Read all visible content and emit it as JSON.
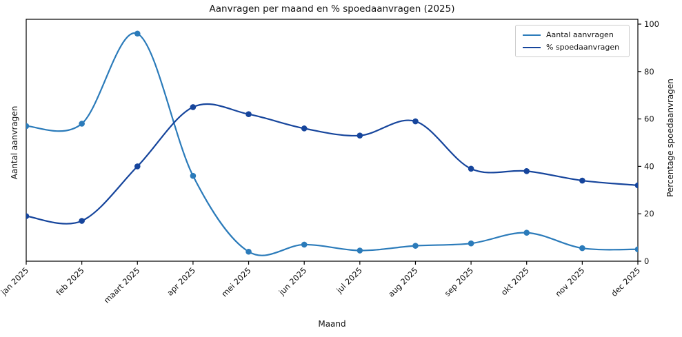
{
  "chart_data": {
    "type": "line",
    "title": "Aanvragen per maand en % spoedaanvragen (2025)",
    "xlabel": "Maand",
    "ylabel_left": "Aantal aanvragen",
    "ylabel_right": "Percentage spoedaanvragen",
    "categories": [
      "jan 2025",
      "feb 2025",
      "maart 2025",
      "apr 2025",
      "mei 2025",
      "jun 2025",
      "jul 2025",
      "aug 2025",
      "sep 2025",
      "okt 2025",
      "nov 2025",
      "dec 2025"
    ],
    "series": [
      {
        "name": "Aantal aanvragen",
        "axis": "left",
        "color": "#2b7bba",
        "marker": "circle",
        "values": [
          57,
          58,
          96,
          36,
          4,
          7,
          4.5,
          6.5,
          7.5,
          12,
          5.5,
          5
        ]
      },
      {
        "name": "% spoedaanvragen",
        "axis": "right",
        "color": "#16459c",
        "marker": "circle",
        "values": [
          19,
          17,
          40,
          65,
          62,
          56,
          53,
          59,
          39,
          38,
          34,
          32
        ]
      }
    ],
    "right_axis": {
      "ticks": [
        0,
        20,
        40,
        60,
        80,
        100
      ],
      "range": [
        0,
        100
      ]
    },
    "left_axis": {
      "tick_labels": [],
      "range": [
        0,
        100
      ]
    },
    "legend": {
      "position": "upper right",
      "entries": [
        "Aantal aanvragen",
        "% spoedaanvragen"
      ]
    },
    "grid": false,
    "smooth": true,
    "line_width": 2.2,
    "marker_radius": 4.3,
    "spine_color": "#000000",
    "tick_label_color": "#111111"
  }
}
